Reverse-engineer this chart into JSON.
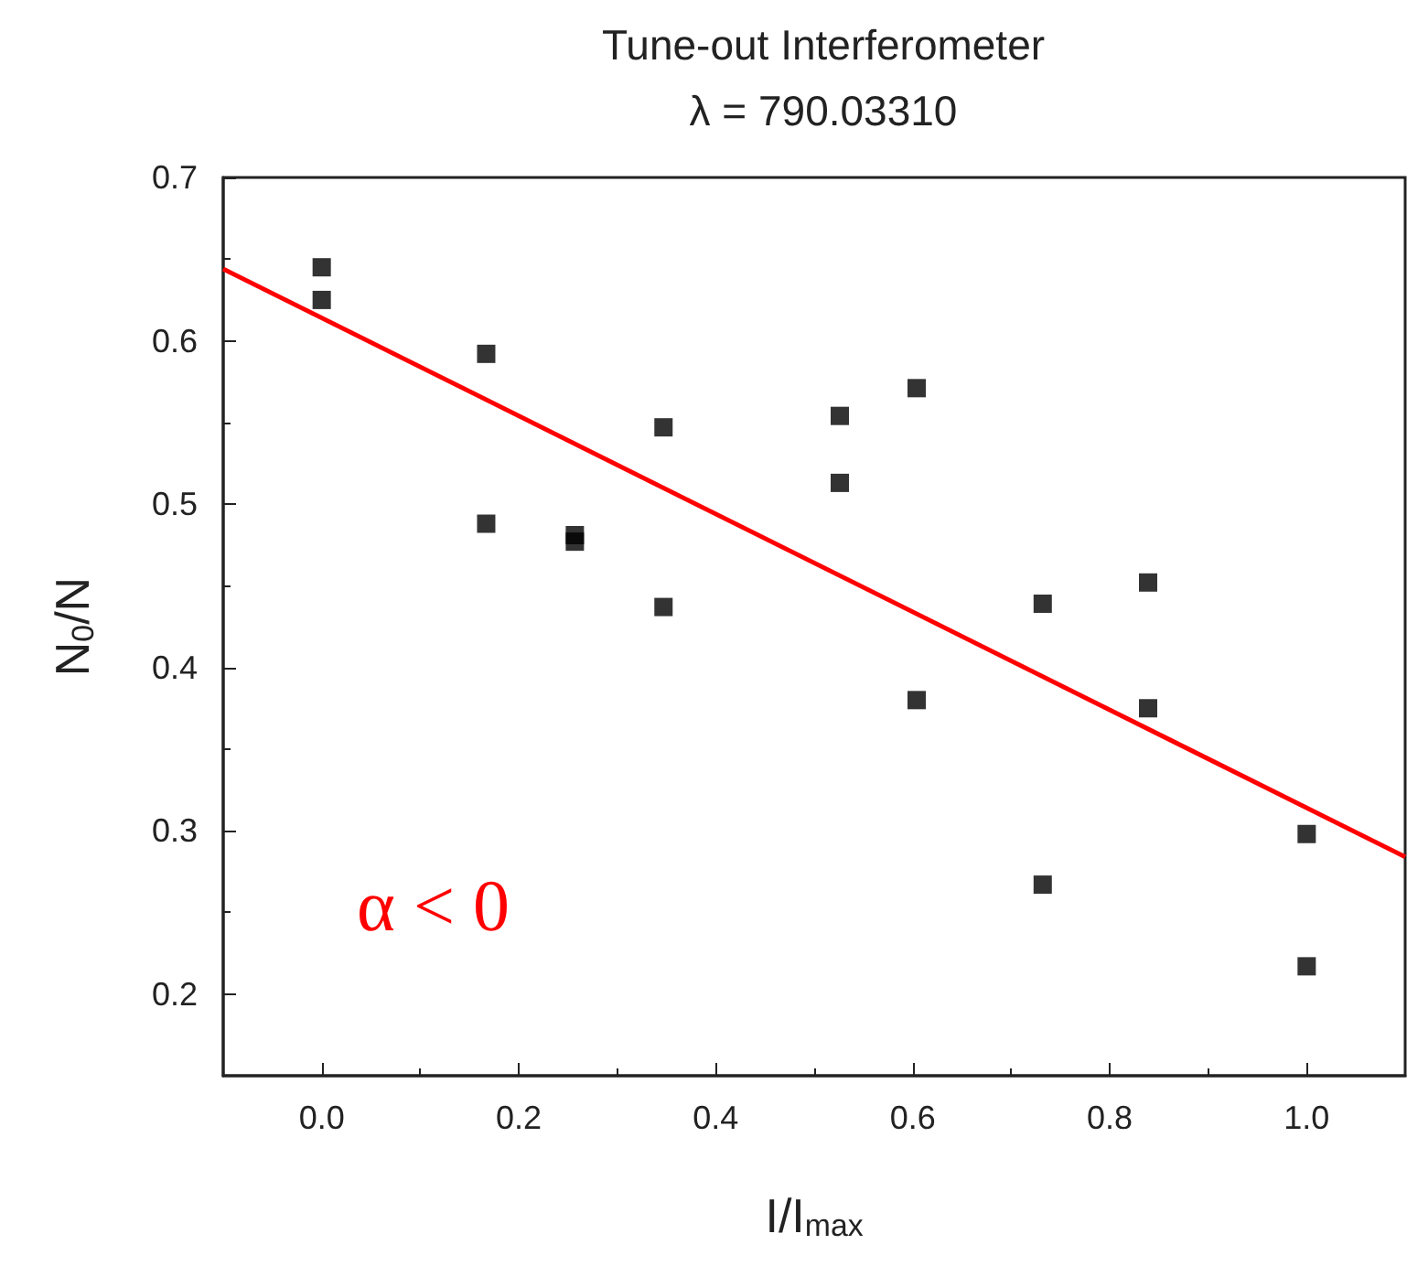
{
  "chart_data": {
    "type": "scatter",
    "title": "Tune-out Interferometer",
    "subtitle": "λ = 790.03310",
    "xlabel": "I/I$_{max}$",
    "ylabel": "N$_{0}$/N",
    "series": [
      {
        "color": "#000000",
        "marker": "square",
        "x": [
          0,
          0,
          0.167,
          0.167,
          0.257,
          0.257,
          0.347,
          0.347,
          0.526,
          0.526,
          0.604,
          0.604,
          0.732,
          0.732,
          0.839,
          0.839,
          1.0,
          1.0
        ],
        "values": [
          0.645,
          0.625,
          0.592,
          0.488,
          0.481,
          0.477,
          0.547,
          0.437,
          0.554,
          0.513,
          0.571,
          0.38,
          0.439,
          0.267,
          0.452,
          0.375,
          0.298,
          0.217
        ]
      },
      {
        "type": "line",
        "color": "#ff0000",
        "marker": "none",
        "line_style": "solid",
        "x": [
          -0.1,
          1.1
        ],
        "values": [
          0.644,
          0.284
        ]
      }
    ],
    "annotations": [
      "α < 0"
    ],
    "xlim": [
      -0.1,
      1.1
    ],
    "xticks": [
      {
        "value": 0,
        "label": "0.0"
      },
      0.2,
      0.4,
      0.6,
      0.8,
      {
        "value": 1,
        "label": "1.0"
      }
    ],
    "ylim": [
      0.15,
      0.7
    ],
    "yticks": [
      0.2,
      0.3,
      0.4,
      0.5,
      0.6,
      0.7
    ],
    "grid": false
  }
}
